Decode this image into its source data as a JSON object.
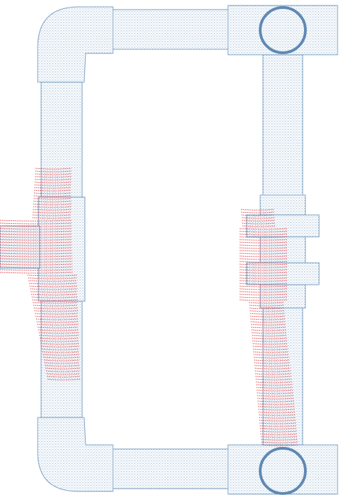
{
  "scene": {
    "description_visible_text": "",
    "background_color": "#ffffff",
    "pipe_point_color": "#7ba0c4",
    "pipe_edge_color": "#5f89b3",
    "scan_point_color": "#d9252b"
  },
  "layers": [
    {
      "name": "pipe-frame-point-cloud",
      "color_key": "pipe_point_color"
    },
    {
      "name": "red-scan-left",
      "color_key": "scan_point_color"
    },
    {
      "name": "red-scan-right",
      "color_key": "scan_point_color"
    }
  ]
}
